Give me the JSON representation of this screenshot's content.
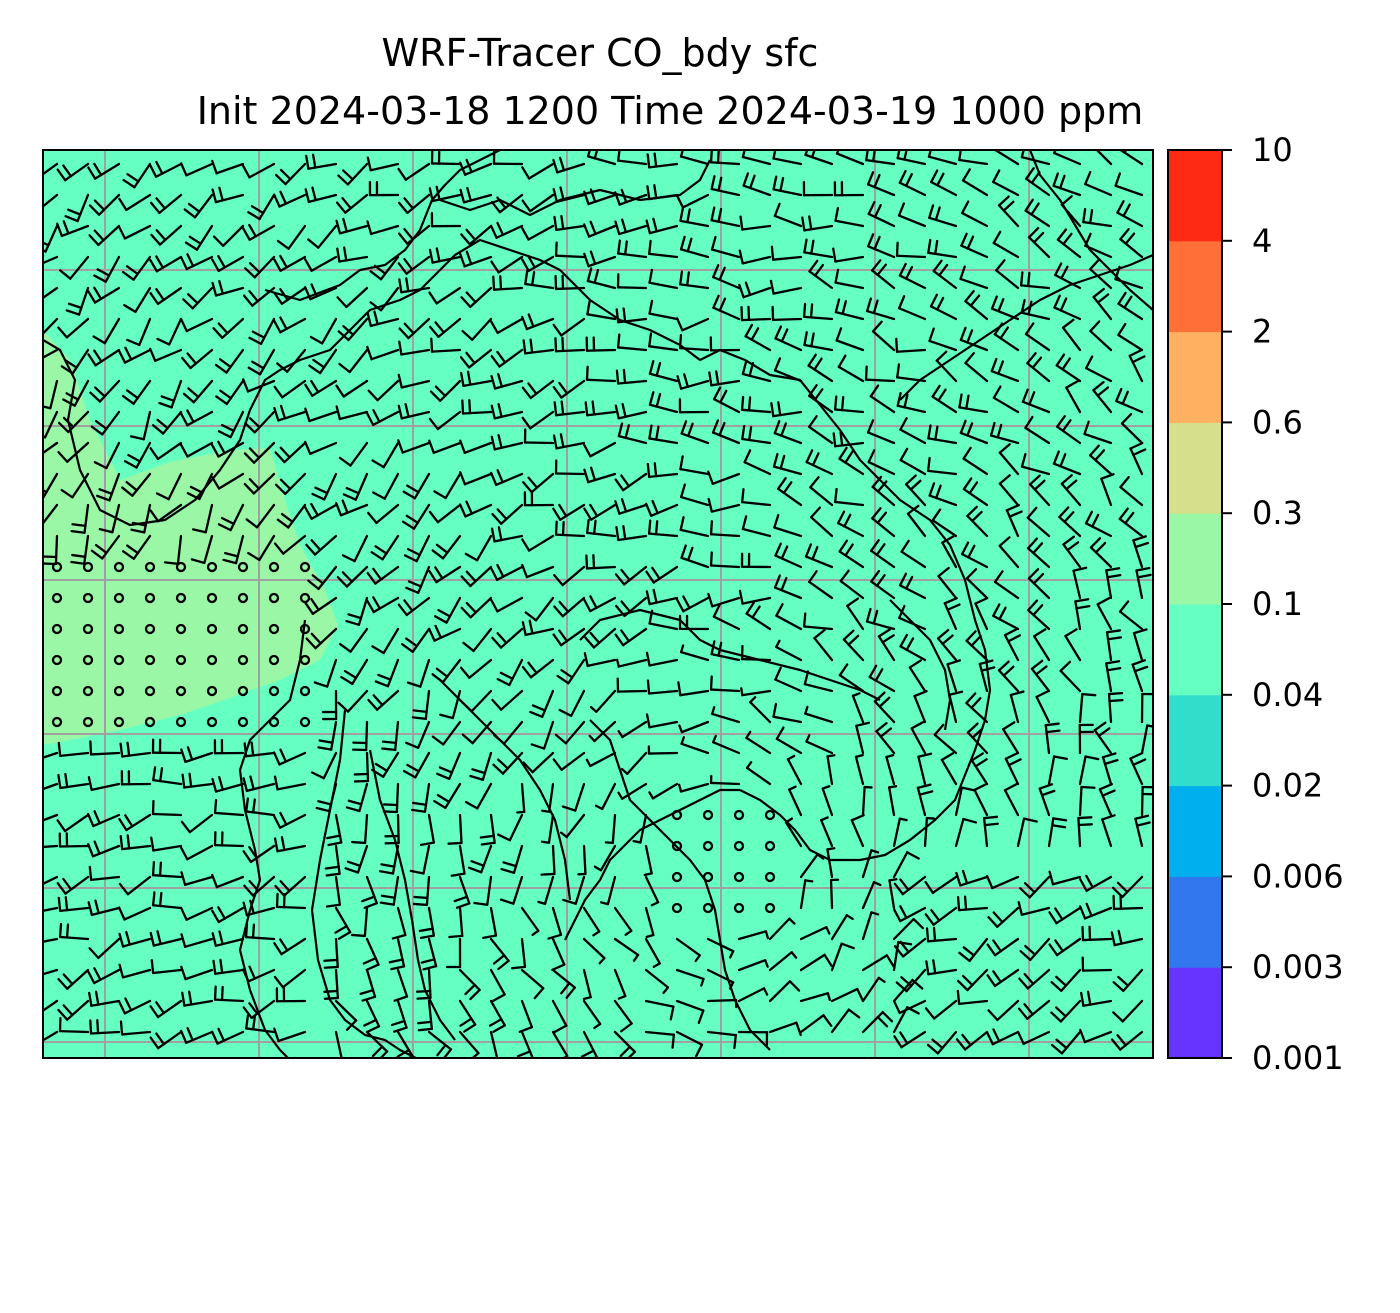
{
  "title": {
    "line1": "WRF-Tracer CO_bdy sfc",
    "line2": "Init 2024-03-18 1200 Time 2024-03-19 1000 ppm"
  },
  "colors": {
    "background_field": "#66ffc2",
    "elevated_field": "#99f7a6",
    "gridline": "#a0a0a0",
    "coastline": "#000000",
    "barb": "#000000"
  },
  "colorbar": {
    "levels": [
      "0.001",
      "0.003",
      "0.006",
      "0.02",
      "0.04",
      "0.1",
      "0.3",
      "0.6",
      "2",
      "4",
      "10"
    ],
    "colors": [
      "#6633ff",
      "#3377ee",
      "#00b0ee",
      "#33ddcc",
      "#66ffc2",
      "#99f7a6",
      "#d6e08a",
      "#ffb060",
      "#ff7038",
      "#ff2a14"
    ]
  },
  "field": {
    "base_level_range": [
      "0.04",
      "0.1"
    ],
    "max_level_range": [
      "0.1",
      "0.3"
    ]
  }
}
